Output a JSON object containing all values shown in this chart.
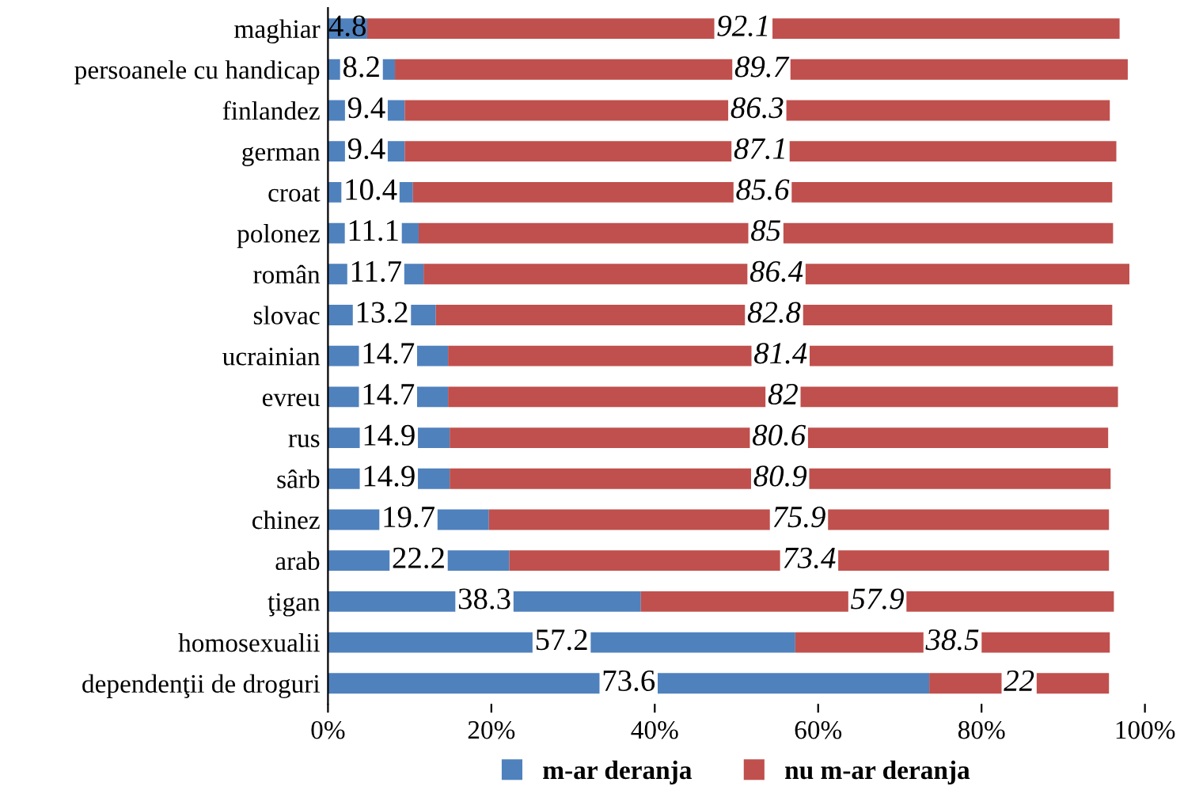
{
  "chart_data": {
    "type": "bar",
    "orientation": "horizontal",
    "stacked": true,
    "categories": [
      "maghiar",
      "persoanele cu handicap",
      "finlandez",
      "german",
      "croat",
      "polonez",
      "român",
      "slovac",
      "ucrainian",
      "evreu",
      "rus",
      "sârb",
      "chinez",
      "arab",
      "ţigan",
      "homosexualii",
      "dependenţii de droguri"
    ],
    "series": [
      {
        "name": "m-ar deranja",
        "color": "#4f81bd",
        "values": [
          4.8,
          8.2,
          9.4,
          9.4,
          10.4,
          11.1,
          11.7,
          13.2,
          14.7,
          14.7,
          14.9,
          14.9,
          19.7,
          22.2,
          38.3,
          57.2,
          73.6
        ],
        "value_labels": [
          "4.8",
          "8.2",
          "9.4",
          "9.4",
          "10.4",
          "11.1",
          "11.7",
          "13.2",
          "14.7",
          "14.7",
          "14.9",
          "14.9",
          "19.7",
          "22.2",
          "38.3",
          "57.2",
          "73.6"
        ]
      },
      {
        "name": "nu m-ar deranja",
        "color": "#c0504d",
        "values": [
          92.1,
          89.7,
          86.3,
          87.1,
          85.6,
          85,
          86.4,
          82.8,
          81.4,
          82,
          80.6,
          80.9,
          75.9,
          73.4,
          57.9,
          38.5,
          22
        ],
        "value_labels": [
          "92.1",
          "89.7",
          "86.3",
          "87.1",
          "85.6",
          "85",
          "86.4",
          "82.8",
          "81.4",
          "82",
          "80.6",
          "80.9",
          "75.9",
          "73.4",
          "57.9",
          "38.5",
          "22"
        ]
      }
    ],
    "xlim": [
      0,
      100
    ],
    "xticks": [
      {
        "value": 0,
        "label": "0%"
      },
      {
        "value": 20,
        "label": "20%"
      },
      {
        "value": 40,
        "label": "40%"
      },
      {
        "value": 60,
        "label": "60%"
      },
      {
        "value": 80,
        "label": "80%"
      },
      {
        "value": 100,
        "label": "100%"
      }
    ],
    "grid": false,
    "legend": "bottom"
  }
}
